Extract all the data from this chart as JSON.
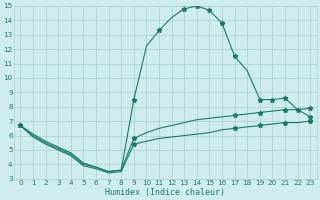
{
  "xlabel": "Humidex (Indice chaleur)",
  "x": [
    0,
    1,
    2,
    3,
    4,
    5,
    6,
    7,
    8,
    9,
    10,
    11,
    12,
    13,
    14,
    15,
    16,
    17,
    18,
    19,
    20,
    21,
    22,
    23
  ],
  "y_max": [
    6.7,
    6.1,
    5.6,
    5.2,
    4.8,
    4.1,
    3.8,
    3.5,
    3.6,
    8.5,
    12.2,
    13.3,
    14.2,
    14.8,
    15.0,
    14.7,
    13.8,
    11.5,
    10.5,
    8.5,
    8.5,
    8.6,
    7.8,
    7.3
  ],
  "y_mean": [
    6.7,
    6.0,
    5.5,
    5.1,
    4.7,
    4.0,
    3.8,
    3.5,
    3.6,
    5.8,
    6.2,
    6.5,
    6.7,
    6.9,
    7.1,
    7.2,
    7.3,
    7.4,
    7.5,
    7.6,
    7.7,
    7.8,
    7.8,
    7.9
  ],
  "y_min": [
    6.7,
    5.9,
    5.4,
    5.0,
    4.6,
    3.9,
    3.7,
    3.4,
    3.5,
    5.4,
    5.6,
    5.8,
    5.9,
    6.0,
    6.1,
    6.2,
    6.4,
    6.5,
    6.6,
    6.7,
    6.8,
    6.9,
    6.9,
    7.0
  ],
  "marker_indices_max": [
    0,
    9,
    11,
    13,
    14,
    15,
    16,
    17,
    19,
    20,
    21,
    22,
    23
  ],
  "marker_indices_mean": [
    0,
    9,
    17,
    19,
    21,
    23
  ],
  "marker_indices_min": [
    0,
    9,
    17,
    19,
    21,
    23
  ],
  "line_color": "#1a7a6a",
  "bg_color": "#d0eded",
  "grid_color": "#aacfcc",
  "ylim": [
    3,
    15
  ],
  "xlim": [
    -0.5,
    23.5
  ],
  "yticks": [
    3,
    4,
    5,
    6,
    7,
    8,
    9,
    10,
    11,
    12,
    13,
    14,
    15
  ],
  "xticks": [
    0,
    1,
    2,
    3,
    4,
    5,
    6,
    7,
    8,
    9,
    10,
    11,
    12,
    13,
    14,
    15,
    16,
    17,
    18,
    19,
    20,
    21,
    22,
    23
  ],
  "tick_fontsize": 5.2,
  "xlabel_fontsize": 6.0,
  "lw": 0.8,
  "ms": 3.5
}
